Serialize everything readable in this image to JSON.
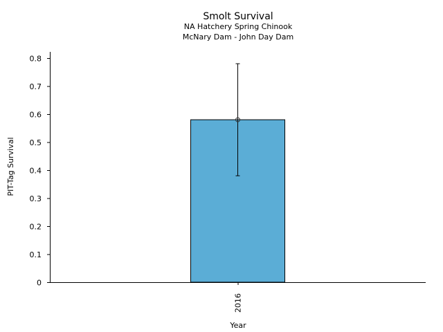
{
  "chart_data": {
    "type": "bar",
    "title": "Smolt Survival",
    "subtitle": [
      "NA Hatchery Spring Chinook",
      "McNary Dam - John Day Dam"
    ],
    "xlabel": "Year",
    "ylabel": "PIT-Tag Survival",
    "categories": [
      "2016"
    ],
    "values": [
      0.58
    ],
    "error_low": [
      0.38
    ],
    "error_high": [
      0.78
    ],
    "ylim": [
      0,
      0.82
    ],
    "yticks": [
      "0",
      "0.1",
      "0.2",
      "0.3",
      "0.4",
      "0.5",
      "0.6",
      "0.7",
      "0.8"
    ],
    "grid": false,
    "bar_color": "#5badd6"
  }
}
